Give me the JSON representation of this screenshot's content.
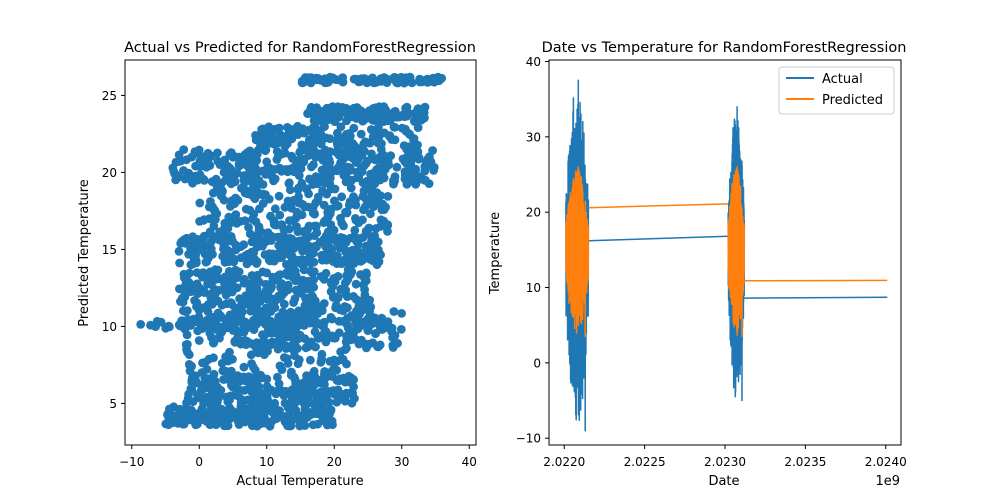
{
  "chart_data": [
    {
      "type": "scatter",
      "title": "Actual vs Predicted for RandomForestRegression",
      "xlabel": "Actual Temperature",
      "ylabel": "Predicted Temperature",
      "xlim": [
        -11,
        41
      ],
      "ylim": [
        2.3,
        27.3
      ],
      "xticks": [
        -10,
        0,
        10,
        20,
        30,
        40
      ],
      "yticks": [
        5,
        10,
        15,
        20,
        25
      ],
      "color": "#1f77b4",
      "clusters": [
        {
          "x": [
            -9,
            7
          ],
          "y": [
            9.8,
            10.4
          ],
          "n": 40
        },
        {
          "x": [
            -4,
            35
          ],
          "y": [
            19.2,
            21.5
          ],
          "n": 330
        },
        {
          "x": [
            15,
            36
          ],
          "y": [
            25.8,
            26.2
          ],
          "n": 100
        },
        {
          "x": [
            16,
            34
          ],
          "y": [
            23.3,
            24.3
          ],
          "n": 140
        },
        {
          "x": [
            -2,
            23
          ],
          "y": [
            5.0,
            6.9
          ],
          "n": 230
        },
        {
          "x": [
            -5,
            20
          ],
          "y": [
            3.5,
            4.8
          ],
          "n": 200
        },
        {
          "x": [
            -3,
            27
          ],
          "y": [
            14.0,
            15.9
          ],
          "n": 250
        },
        {
          "x": [
            -3,
            26
          ],
          "y": [
            10.0,
            13.7
          ],
          "n": 330
        },
        {
          "x": [
            0,
            28
          ],
          "y": [
            16.0,
            19.0
          ],
          "n": 200
        },
        {
          "x": [
            8,
            33
          ],
          "y": [
            21.6,
            23.0
          ],
          "n": 120
        },
        {
          "x": [
            -2,
            22
          ],
          "y": [
            7.0,
            9.8
          ],
          "n": 110
        },
        {
          "x": [
            5,
            30
          ],
          "y": [
            8.5,
            11.0
          ],
          "n": 120
        }
      ]
    },
    {
      "type": "line",
      "title": "Date vs Temperature for RandomForestRegression",
      "xlabel": "Date",
      "ylabel": "Temperature",
      "x_offset_label": "1e9",
      "xlim": [
        2.021905,
        2.024095
      ],
      "ylim": [
        -10.9,
        40.2
      ],
      "xticks": [
        2.022,
        2.0225,
        2.023,
        2.0235,
        2.024
      ],
      "xtick_labels": [
        "2.0220",
        "2.0225",
        "2.0230",
        "2.0235",
        "2.0240"
      ],
      "yticks": [
        -10,
        0,
        10,
        20,
        30,
        40
      ],
      "legend_position": "top-right",
      "series": [
        {
          "name": "Actual",
          "color": "#1f77b4",
          "blocks": [
            {
              "x_start": 2.02201,
              "x_end": 2.02215,
              "min": -9,
              "max": 37.5
            },
            {
              "x_start": 2.02302,
              "x_end": 2.02312,
              "min": -5,
              "max": 34
            }
          ],
          "flat_segments": [
            {
              "x": [
                2.02215,
                2.02302
              ],
              "y": [
                16.2,
                16.8
              ]
            },
            {
              "x": [
                2.02312,
                2.02401
              ],
              "y": [
                8.6,
                8.7
              ]
            }
          ]
        },
        {
          "name": "Predicted",
          "color": "#ff7f0e",
          "blocks": [
            {
              "x_start": 2.02201,
              "x_end": 2.02215,
              "min": 3.5,
              "max": 26
            },
            {
              "x_start": 2.02302,
              "x_end": 2.02312,
              "min": 3.5,
              "max": 26
            }
          ],
          "flat_segments": [
            {
              "x": [
                2.02215,
                2.02302
              ],
              "y": [
                20.6,
                21.1
              ]
            },
            {
              "x": [
                2.02312,
                2.02401
              ],
              "y": [
                10.9,
                10.95
              ]
            }
          ]
        }
      ]
    }
  ]
}
